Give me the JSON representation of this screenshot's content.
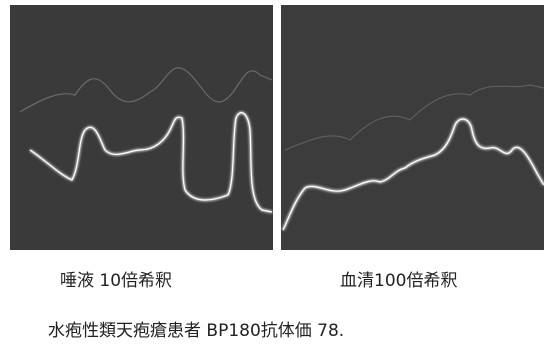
{
  "panels": [
    {
      "caption": "唾液 10倍希釈"
    },
    {
      "caption": "血清100倍希釈"
    }
  ],
  "footer": {
    "text": "水疱性類天疱瘡患者 BP180抗体価 78."
  }
}
